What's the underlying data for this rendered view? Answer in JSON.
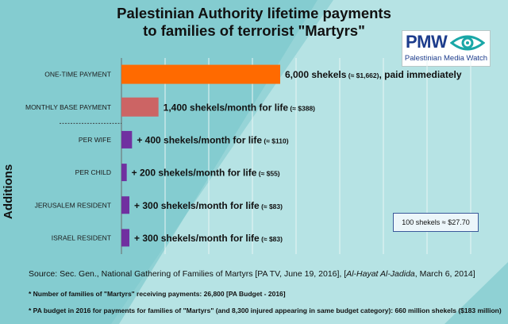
{
  "logo": {
    "wordmark": "PMW",
    "subtitle": "Palestinian Media Watch"
  },
  "chart_data": {
    "type": "bar",
    "orientation": "horizontal",
    "title_lines": [
      "Palestinian Authority lifetime payments",
      "to families of terrorist \"Martyrs\""
    ],
    "unit": "shekels",
    "xlim": [
      0,
      6000
    ],
    "grid": true,
    "group_label": "Additions",
    "conversion_note": "100 shekels ≈ $27.70",
    "colors": {
      "one_time": "#ff6a00",
      "monthly_base": "#cc6464",
      "additions": "#7030a0",
      "grid": "#e8f4f4",
      "axis": "#6a6a6a"
    },
    "bars": [
      {
        "category": "ONE-TIME PAYMENT",
        "value": 6000,
        "label_main": "6,000 shekels",
        "label_small": " (≈ $1,662)",
        "label_tail": ", paid immediately"
      },
      {
        "category": "MONTHLY BASE PAYMENT",
        "value": 1400,
        "label_main": "1,400 shekels/month for life",
        "label_small": " (≈ $388)",
        "label_tail": ""
      },
      {
        "category": "PER WIFE",
        "value": 400,
        "label_main": "+ 400 shekels/month for life",
        "label_small": " (≈ $110)",
        "label_tail": ""
      },
      {
        "category": "PER CHILD",
        "value": 200,
        "label_main": "+ 200 shekels/month for life",
        "label_small": " (≈ $55)",
        "label_tail": ""
      },
      {
        "category": "JERUSALEM RESIDENT",
        "value": 300,
        "label_main": "+ 300 shekels/month for life",
        "label_small": " (≈ $83)",
        "label_tail": ""
      },
      {
        "category": "ISRAEL RESIDENT",
        "value": 300,
        "label_main": "+ 300 shekels/month for life",
        "label_small": " (≈ $83)",
        "label_tail": ""
      }
    ]
  },
  "footer": {
    "source_part1": "Source: Sec. Gen., National Gathering of Families of Martyrs [PA TV, June 19, 2016], [",
    "source_italic": "Al-Hayat Al-Jadida",
    "source_part2": ", March 6, 2014]",
    "note1": "* Number of families of \"Martyrs\" receiving payments: 26,800 [PA Budget - 2016]",
    "note2": "* PA budget in 2016 for payments for families of \"Martyrs\" (and 8,300 injured appearing in same budget category): 660 million shekels ($183 million)"
  }
}
